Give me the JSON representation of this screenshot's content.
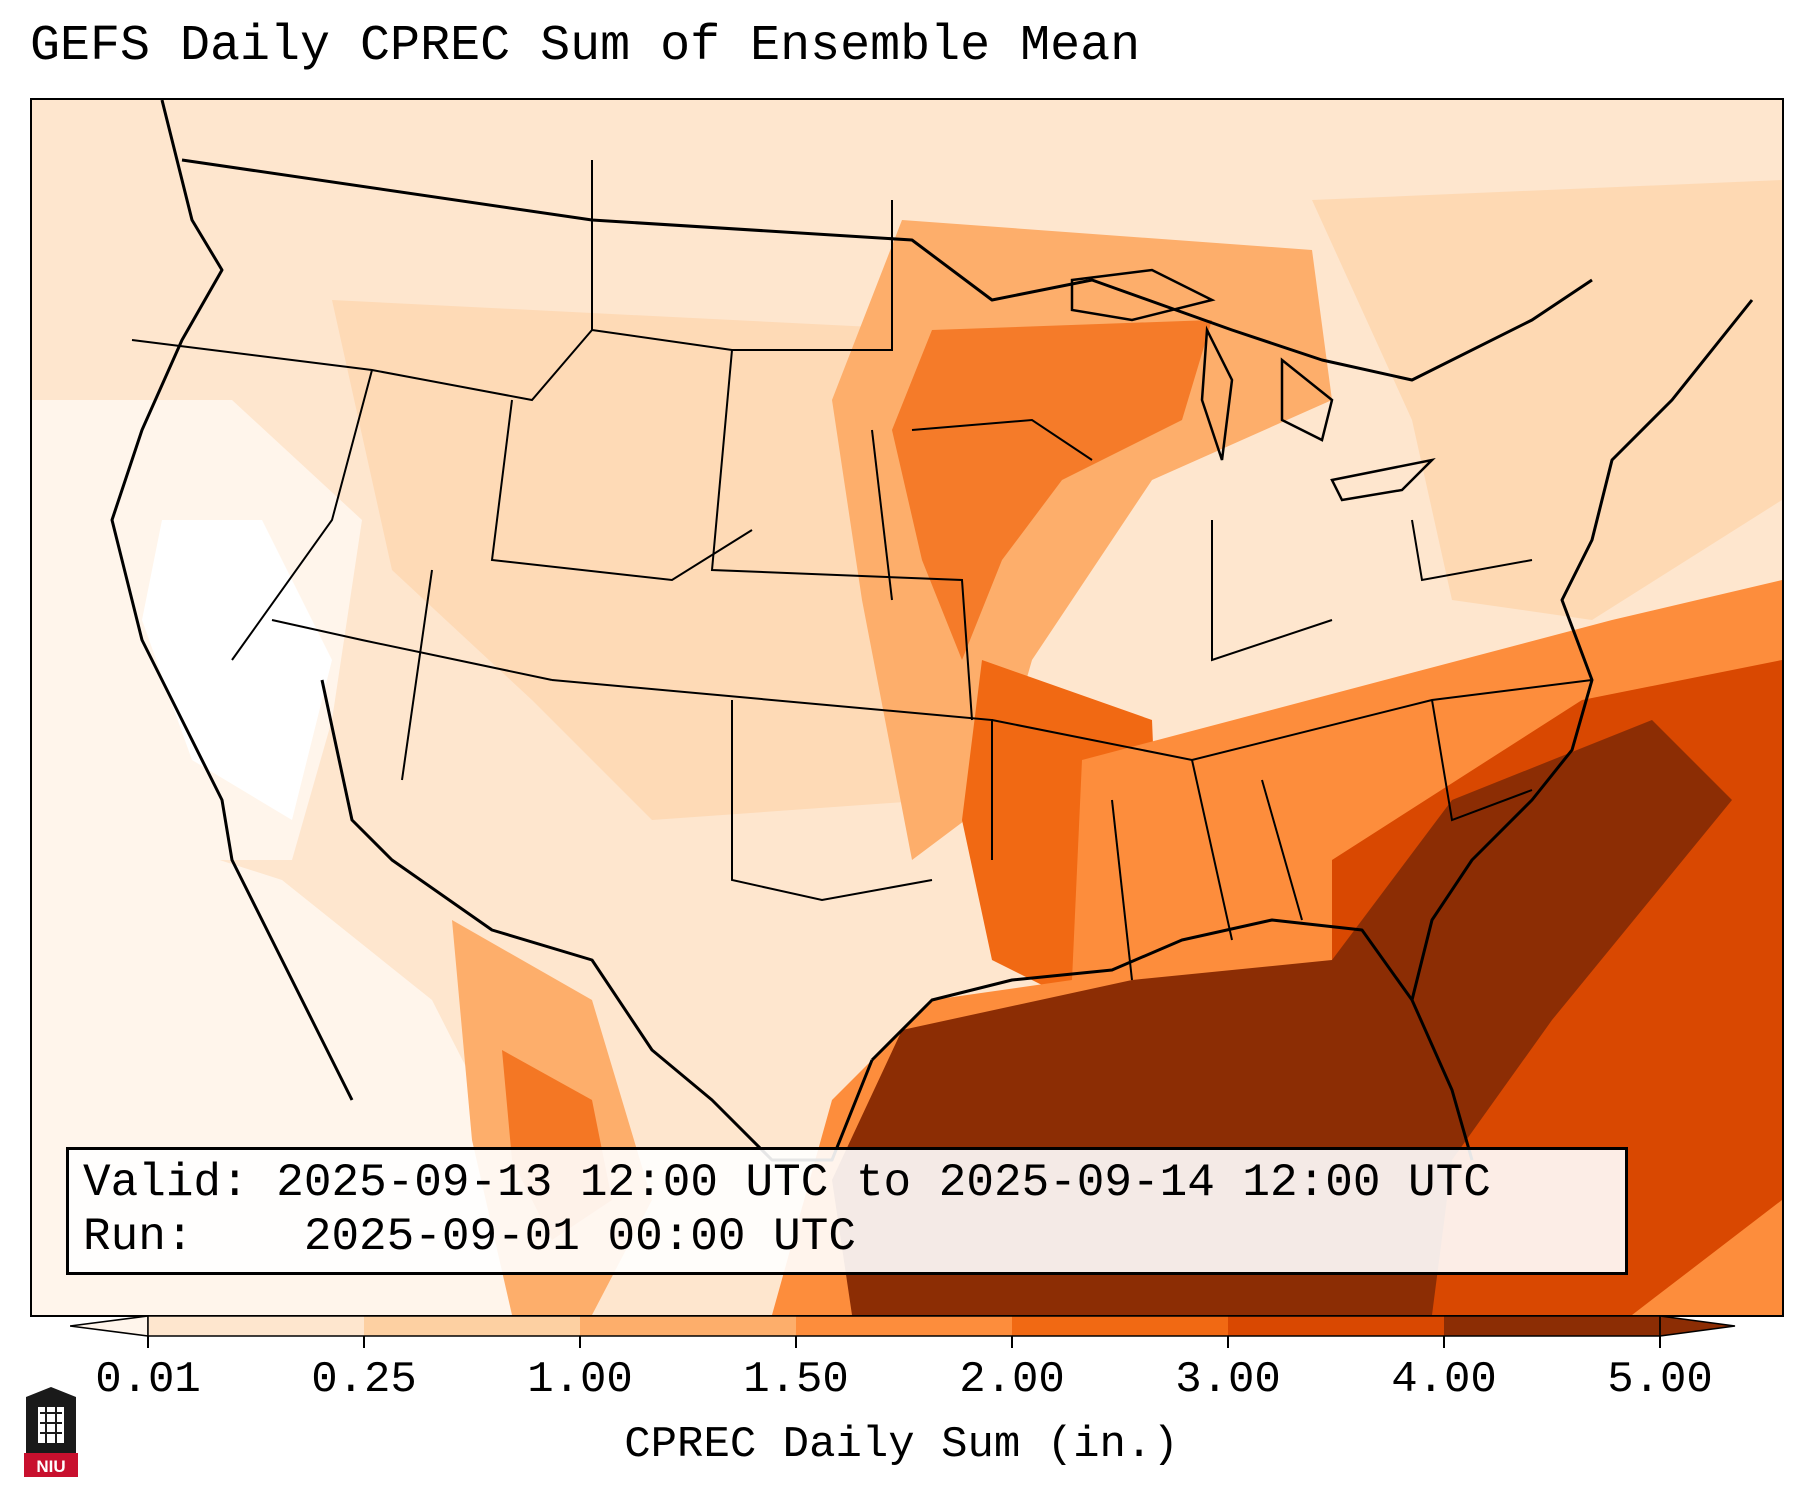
{
  "title": "GEFS Daily CPREC Sum of Ensemble Mean",
  "info": {
    "valid_label": "Valid:",
    "valid_value": "2025-09-13 12:00 UTC to 2025-09-14 12:00 UTC",
    "run_label": "Run:",
    "run_value": "2025-09-01 00:00 UTC"
  },
  "colorbar": {
    "label": "CPREC Daily Sum (in.)",
    "ticks": [
      "0.01",
      "0.25",
      "1.00",
      "1.50",
      "2.00",
      "3.00",
      "4.00",
      "5.00"
    ],
    "colors": [
      "#fff5eb",
      "#fee6ce",
      "#fdd0a2",
      "#fdae6b",
      "#fd8d3c",
      "#f16913",
      "#d94801",
      "#8c2d04"
    ],
    "extend": "both"
  },
  "map": {
    "region": "Contiguous United States",
    "heaviest_area": "Gulf of Mexico and Southeast Atlantic coast",
    "colors": {
      "land_light": "#fee6ce",
      "land_mid": "#fdd0a2",
      "band_orange": "#fdae6b",
      "band_dark": "#f16913",
      "band_darker": "#d94801",
      "max": "#8c2d04",
      "dry": "#fff5eb"
    }
  },
  "logo": {
    "text": "NIU",
    "color": "#c8102e"
  }
}
